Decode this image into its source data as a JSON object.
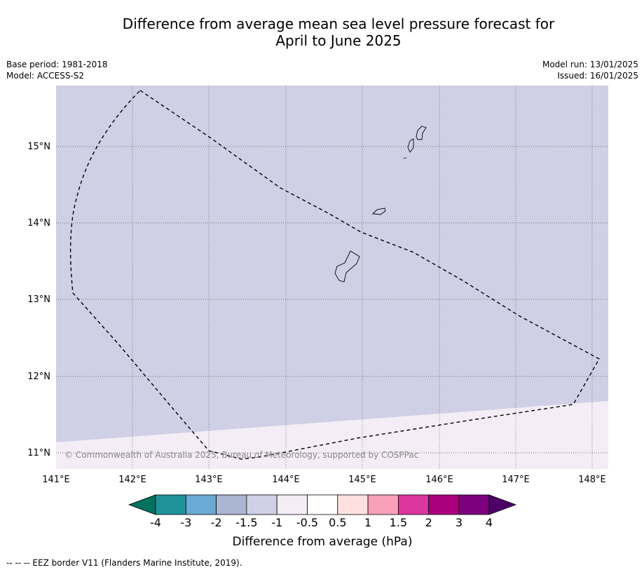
{
  "header": {
    "title_line1": "Difference from average mean sea level pressure forecast for",
    "title_line2": "April to June 2025",
    "base_period": "Base period: 1981-2018",
    "model": "Model: ACCESS-S2",
    "model_run": "Model run: 13/01/2025",
    "issued": "Issued: 16/01/2025"
  },
  "map": {
    "lon_labels": [
      "141°E",
      "142°E",
      "143°E",
      "144°E",
      "145°E",
      "146°E",
      "147°E",
      "148°E"
    ],
    "lat_labels": [
      "15°N",
      "14°N",
      "13°N",
      "12°N",
      "11°N"
    ],
    "copyright": "© Commonwealth of Australia 2025, Bureau of Meteorology, supported by COSPPac",
    "colors": {
      "main_region": "#cfd0e5",
      "south_region": "#f4edf6"
    }
  },
  "colorbar": {
    "ticks": [
      "-4",
      "-3",
      "-2",
      "-1.5",
      "-1",
      "-0.5",
      "0.5",
      "1",
      "1.5",
      "2",
      "3",
      "4"
    ],
    "colors": [
      "#00705f",
      "#1f9399",
      "#6aaad4",
      "#abb5d4",
      "#cfd0e5",
      "#f4edf6",
      "#ffffff",
      "#ffe0e0",
      "#f9a0b8",
      "#dc36a0",
      "#ab007e",
      "#7c007e",
      "#4c0068"
    ],
    "label": "Difference from average (hPa)"
  },
  "footnote": "-- -- -- EEZ border V11 (Flanders Marine Institute, 2019)."
}
